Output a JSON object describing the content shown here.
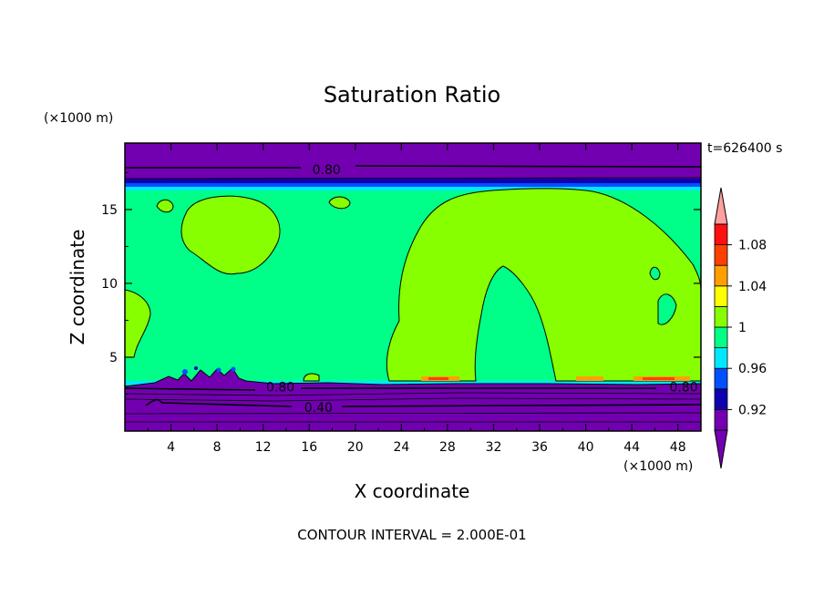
{
  "chart_data": {
    "type": "heatmap",
    "title": "Saturation Ratio",
    "xlabel": "X coordinate",
    "ylabel": "Z coordinate",
    "x_unit": "(×1000 m)",
    "y_unit": "(×1000 m)",
    "time_label": "t=626400 s",
    "footer": "CONTOUR INTERVAL = 2.000E-01",
    "xlim": [
      0,
      50
    ],
    "ylim": [
      0,
      19.5
    ],
    "x_ticks": [
      4,
      8,
      12,
      16,
      20,
      24,
      28,
      32,
      36,
      40,
      44,
      48
    ],
    "y_ticks": [
      5,
      10,
      15
    ],
    "contour_labels": [
      {
        "text": "0.80",
        "x": 17.5,
        "z": 17.7
      },
      {
        "text": "0.80",
        "x": 13.5,
        "z": 3.0
      },
      {
        "text": "0.80",
        "x": 48.5,
        "z": 3.0
      },
      {
        "text": "0.40",
        "x": 16.8,
        "z": 1.6
      }
    ],
    "colorbar": {
      "labels": [
        "1.08",
        "1.04",
        "1",
        "0.96",
        "0.92"
      ],
      "levels": [
        0.92,
        0.94,
        0.96,
        0.98,
        1.0,
        1.02,
        1.04,
        1.06,
        1.08,
        1.1
      ],
      "colors": [
        "#7200b0",
        "#1000b0",
        "#0050ff",
        "#00e8ff",
        "#00ff88",
        "#88ff00",
        "#ffff00",
        "#ffa000",
        "#ff4000",
        "#ff1010",
        "#ffa0a0"
      ]
    },
    "colors": {
      "dry": "#7200b0",
      "near_one": "#00ff88",
      "above_one": "#88ff00",
      "band_dark_blue": "#1000b0",
      "band_blue": "#0050ff",
      "band_cyan": "#00e8ff",
      "warm": "#ffa000",
      "red": "#ff4000"
    }
  }
}
